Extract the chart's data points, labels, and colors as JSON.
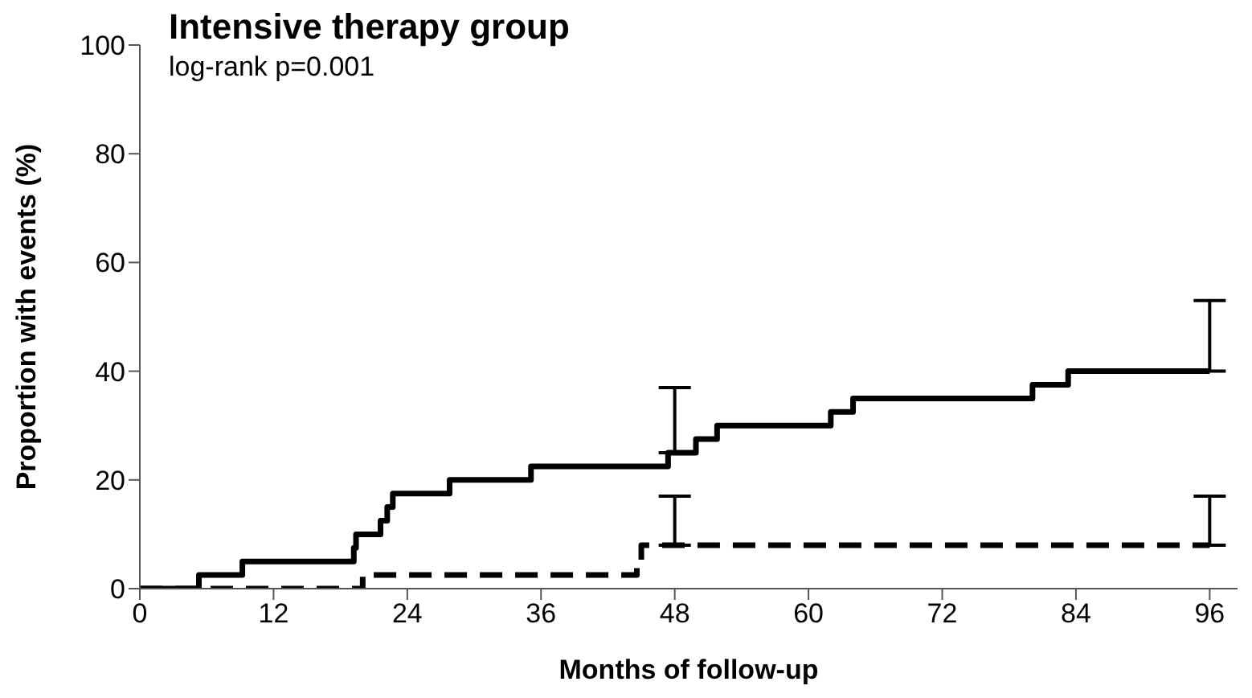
{
  "chart_data": {
    "type": "step",
    "title": "Intensive therapy group",
    "annotations": [
      "log-rank p=0.001"
    ],
    "xlabel": "Months of follow-up",
    "ylabel": "Proportion with events (%)",
    "xlim": [
      0,
      98.5
    ],
    "xticks": [
      0,
      12,
      24,
      36,
      48,
      60,
      72,
      84,
      96
    ],
    "ylim": [
      0,
      100
    ],
    "yticks": [
      0,
      20,
      40,
      60,
      80,
      100
    ],
    "grid": false,
    "legend": false,
    "marker": "none",
    "series": [
      {
        "color": "#000000",
        "line_style": "solid",
        "x": [
          0,
          5.3,
          9.2,
          19.2,
          19.4,
          21.6,
          22.2,
          22.7,
          27.8,
          35.1,
          47.4,
          48,
          49.9,
          51.8,
          62,
          64,
          80.1,
          83.3,
          96
        ],
        "values": [
          0,
          2.5,
          5,
          7.5,
          10,
          12.5,
          15,
          17.5,
          20,
          22.5,
          25,
          25,
          27.5,
          30,
          32.5,
          35,
          37.5,
          40,
          40
        ],
        "errors": [
          null,
          null,
          null,
          null,
          null,
          null,
          null,
          null,
          null,
          null,
          null,
          [
            25,
            37
          ],
          null,
          null,
          null,
          null,
          null,
          null,
          [
            40,
            53
          ]
        ]
      },
      {
        "color": "#000000",
        "line_style": "dashed",
        "x": [
          0,
          20,
          44.2,
          44.6,
          45,
          48,
          96
        ],
        "values": [
          0,
          2.5,
          2.5,
          5,
          8,
          8,
          8
        ],
        "errors": [
          null,
          null,
          null,
          null,
          null,
          [
            8,
            17
          ],
          [
            8,
            17
          ]
        ]
      }
    ]
  }
}
